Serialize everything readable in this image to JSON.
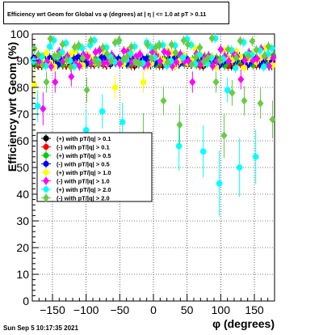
{
  "chart_data": {
    "type": "scatter",
    "title": "Efficiency wrt Geom for Global vs φ (degrees) at |  η | <= 1.0 at pT > 0.11",
    "xlabel": "φ (degrees)",
    "ylabel": "Efficiency wrt Geom (%)",
    "xlim": [
      -180,
      180
    ],
    "ylim": [
      0,
      100
    ],
    "x_ticks": [
      -150,
      -100,
      -50,
      0,
      50,
      100,
      150
    ],
    "x_tick_labels": [
      "−150",
      "−100",
      "−50",
      "0",
      "50",
      "100",
      "150"
    ],
    "y_ticks": [
      0,
      10,
      20,
      30,
      40,
      50,
      60,
      70,
      80,
      90,
      100
    ],
    "y_tick_labels": [
      "0",
      "10",
      "20",
      "30",
      "40",
      "50",
      "60",
      "70",
      "80",
      "90",
      "100"
    ],
    "grid": true,
    "legend_position": "center-left",
    "series": [
      {
        "name": "(+) with pT/|q| > 0.1",
        "color": "#000000",
        "marker": "circle",
        "base": 89.5,
        "spread": 1.0,
        "dips": []
      },
      {
        "name": "(-) with pT/|q| > 0.1",
        "color": "#ff0000",
        "marker": "circle",
        "base": 89.5,
        "spread": 1.0,
        "dips": []
      },
      {
        "name": "(+) with pT/|q| > 0.5",
        "color": "#00cc00",
        "marker": "circle",
        "base": 90.0,
        "spread": 1.2,
        "dips": []
      },
      {
        "name": "(-) with pT/|q| > 0.5",
        "color": "#0000ff",
        "marker": "circle",
        "base": 90.0,
        "spread": 1.2,
        "dips": []
      },
      {
        "name": "(+) with pT/|q| > 1.0",
        "color": "#ffff00",
        "marker": "circle",
        "base": 91.0,
        "spread": 2.5,
        "dips": [
          [
            -175,
            81
          ],
          [
            -55,
            80
          ],
          [
            -15,
            82
          ]
        ]
      },
      {
        "name": "(-) with pT/|q| > 1.0",
        "color": "#ff00ff",
        "marker": "diamond",
        "base": 91.0,
        "spread": 2.5,
        "dips": [
          [
            -165,
            72
          ],
          [
            -145,
            82
          ],
          [
            55,
            82
          ],
          [
            -125,
            84
          ],
          [
            130,
            83
          ]
        ]
      },
      {
        "name": "(+) with pT/|q| > 2.0",
        "color": "#00ffff",
        "marker": "circle",
        "base": 93.0,
        "spread": 4.0,
        "dips": [
          [
            -170,
            73
          ],
          [
            -100,
            64
          ],
          [
            -75,
            71
          ],
          [
            -45,
            67
          ],
          [
            40,
            58
          ],
          [
            75,
            56
          ],
          [
            100,
            44
          ],
          [
            110,
            79
          ],
          [
            130,
            50
          ],
          [
            155,
            54
          ]
        ]
      },
      {
        "name": "(-) with pT/|q| > 2.0",
        "color": "#66cc44",
        "marker": "diamond",
        "base": 93.0,
        "spread": 4.0,
        "dips": [
          [
            -160,
            82
          ],
          [
            -100,
            79
          ],
          [
            -15,
            62
          ],
          [
            15,
            75
          ],
          [
            40,
            66
          ],
          [
            95,
            82
          ],
          [
            105,
            62
          ],
          [
            115,
            78
          ],
          [
            135,
            75
          ],
          [
            160,
            74
          ],
          [
            175,
            68
          ]
        ]
      }
    ]
  },
  "timestamp": "Sun Sep  5 10:17:35 2021"
}
